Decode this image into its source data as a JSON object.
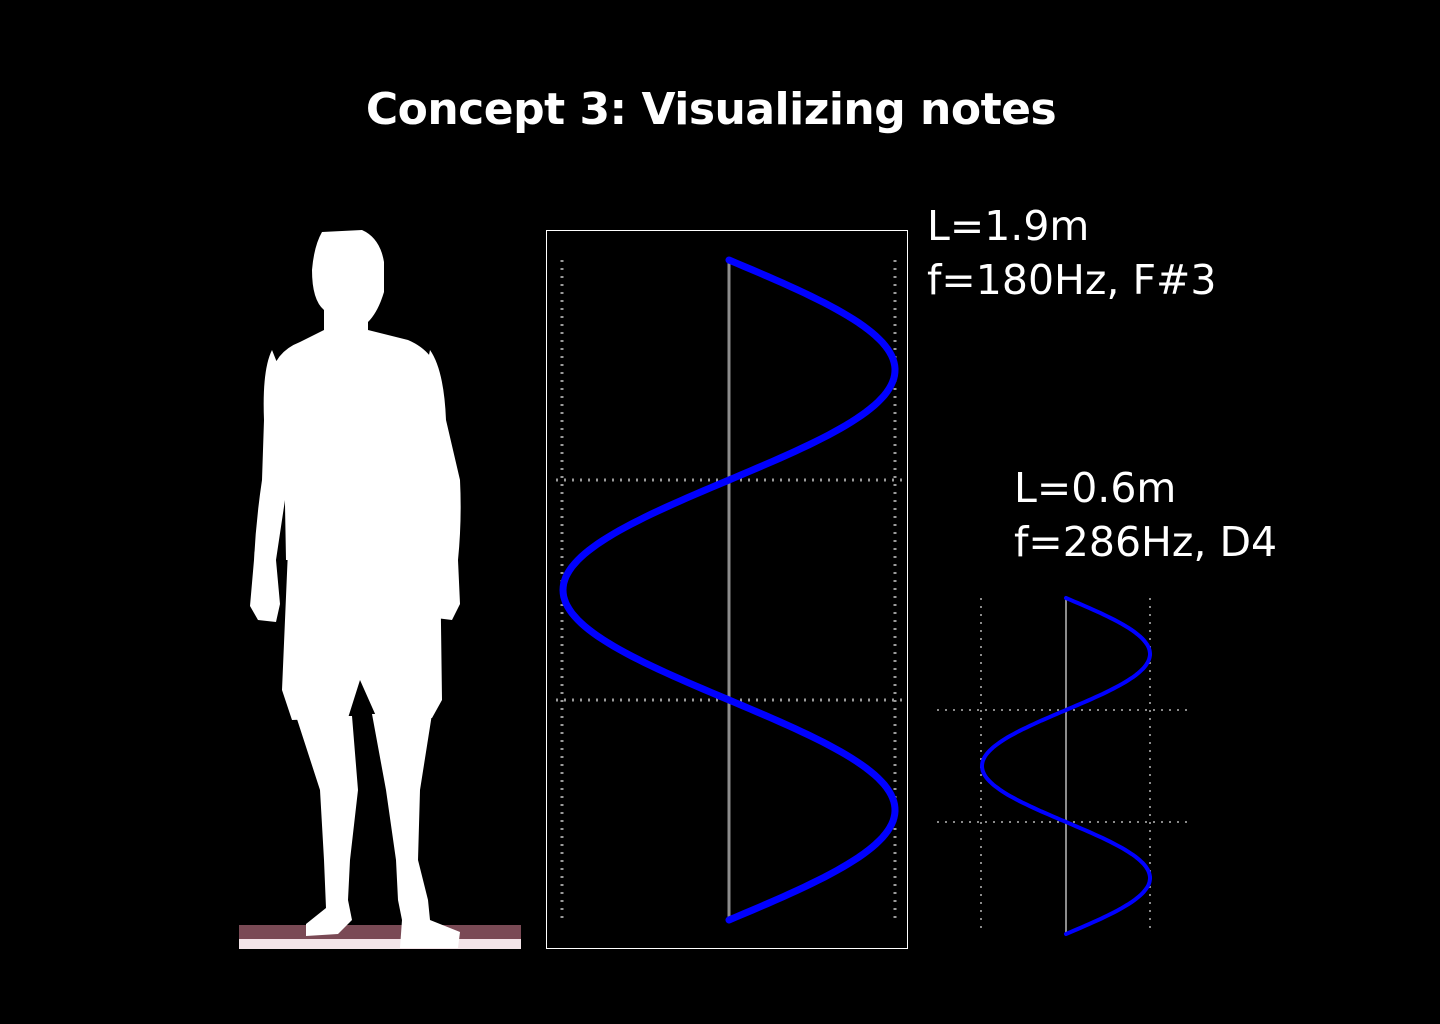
{
  "title": "Concept 3: Visualizing notes",
  "strings": [
    {
      "id": "large",
      "length_text": "L=1.9m",
      "frequency_text": "f=180Hz, F#3",
      "periods": 1.5,
      "color": "#0000ff"
    },
    {
      "id": "small",
      "length_text": "L=0.6m",
      "frequency_text": "f=286Hz, D4",
      "periods": 1.5,
      "color": "#0000ff"
    }
  ],
  "silhouette": {
    "name": "person-silhouette",
    "color": "#ffffff"
  },
  "floor": {
    "name": "floor-strip",
    "colors": [
      "#7a4a55",
      "#f3e4e8"
    ]
  }
}
